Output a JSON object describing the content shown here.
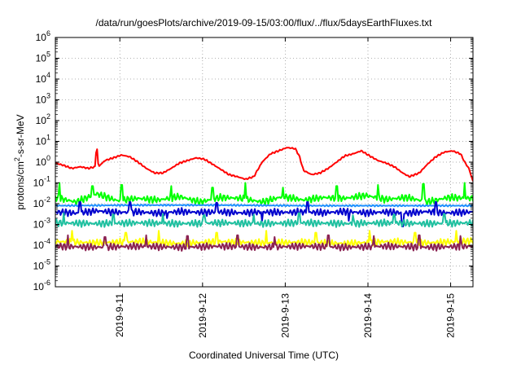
{
  "chart_data": {
    "type": "line",
    "title": "/data/run/goesPlots/archive/2019-09-15/03:00/flux/../flux/5daysEarthFluxes.txt",
    "xlabel": "Coordinated Universal Time (UTC)",
    "ylabel": {
      "prefix": "protons/cm",
      "sup": "2",
      "suffix": "-s-sr-MeV"
    },
    "y_scale": "log",
    "ylim": [
      1e-06,
      1000000.0
    ],
    "y_ticks": [
      {
        "base": "10",
        "exp": "-6",
        "value": 1e-06
      },
      {
        "base": "10",
        "exp": "-5",
        "value": 1e-05
      },
      {
        "base": "10",
        "exp": "-4",
        "value": 0.0001
      },
      {
        "base": "10",
        "exp": "-3",
        "value": 0.001
      },
      {
        "base": "10",
        "exp": "-2",
        "value": 0.01
      },
      {
        "base": "10",
        "exp": "-1",
        "value": 0.1
      },
      {
        "base": "10",
        "exp": "0",
        "value": 1
      },
      {
        "base": "10",
        "exp": "1",
        "value": 10
      },
      {
        "base": "10",
        "exp": "2",
        "value": 100
      },
      {
        "base": "10",
        "exp": "3",
        "value": 1000
      },
      {
        "base": "10",
        "exp": "4",
        "value": 10000
      },
      {
        "base": "10",
        "exp": "5",
        "value": 100000
      },
      {
        "base": "10",
        "exp": "6",
        "value": 1000000
      }
    ],
    "x_range_days": [
      0,
      5.05
    ],
    "x_ticks": [
      {
        "label": "2019-9-11",
        "day": 0.78
      },
      {
        "label": "2019-9-12",
        "day": 1.78
      },
      {
        "label": "2019-9-13",
        "day": 2.78
      },
      {
        "label": "2019-9-14",
        "day": 3.78
      },
      {
        "label": "2019-9-15",
        "day": 4.78
      }
    ],
    "grid": true,
    "series": [
      {
        "color": "#ff0000",
        "width": 2,
        "points": [
          [
            0,
            0.9
          ],
          [
            0.1,
            0.7
          ],
          [
            0.2,
            0.5
          ],
          [
            0.3,
            0.6
          ],
          [
            0.4,
            0.5
          ],
          [
            0.48,
            0.6
          ],
          [
            0.5,
            8
          ],
          [
            0.52,
            0.6
          ],
          [
            0.6,
            1.2
          ],
          [
            0.7,
            1.6
          ],
          [
            0.8,
            2.2
          ],
          [
            0.9,
            1.8
          ],
          [
            1.0,
            1.0
          ],
          [
            1.1,
            0.5
          ],
          [
            1.2,
            0.3
          ],
          [
            1.3,
            0.3
          ],
          [
            1.4,
            0.5
          ],
          [
            1.5,
            0.9
          ],
          [
            1.6,
            1.2
          ],
          [
            1.7,
            1.6
          ],
          [
            1.8,
            1.4
          ],
          [
            1.9,
            0.8
          ],
          [
            2.0,
            0.45
          ],
          [
            2.1,
            0.25
          ],
          [
            2.2,
            0.2
          ],
          [
            2.3,
            0.15
          ],
          [
            2.4,
            0.2
          ],
          [
            2.5,
            1.0
          ],
          [
            2.6,
            2.5
          ],
          [
            2.7,
            3.5
          ],
          [
            2.8,
            5.0
          ],
          [
            2.9,
            4.5
          ],
          [
            2.95,
            2.0
          ],
          [
            3.0,
            0.4
          ],
          [
            3.1,
            0.25
          ],
          [
            3.2,
            0.3
          ],
          [
            3.3,
            0.5
          ],
          [
            3.4,
            1.0
          ],
          [
            3.5,
            2.0
          ],
          [
            3.6,
            2.5
          ],
          [
            3.7,
            3.5
          ],
          [
            3.8,
            2.0
          ],
          [
            3.9,
            1.2
          ],
          [
            4.0,
            0.9
          ],
          [
            4.1,
            0.6
          ],
          [
            4.2,
            0.3
          ],
          [
            4.28,
            0.2
          ],
          [
            4.4,
            0.3
          ],
          [
            4.5,
            0.8
          ],
          [
            4.6,
            1.8
          ],
          [
            4.7,
            3.0
          ],
          [
            4.8,
            3.5
          ],
          [
            4.9,
            2.5
          ],
          [
            4.95,
            1.0
          ],
          [
            5.0,
            0.5
          ],
          [
            5.05,
            0.12
          ]
        ]
      },
      {
        "color": "#00ff00",
        "width": 2,
        "points": [
          [
            0,
            0.02
          ],
          [
            0.25,
            0.012
          ],
          [
            0.5,
            0.03
          ],
          [
            0.75,
            0.014
          ],
          [
            1.0,
            0.018
          ],
          [
            1.25,
            0.015
          ],
          [
            1.5,
            0.022
          ],
          [
            1.75,
            0.012
          ],
          [
            2.0,
            0.02
          ],
          [
            2.25,
            0.018
          ],
          [
            2.5,
            0.012
          ],
          [
            2.75,
            0.022
          ],
          [
            3.0,
            0.015
          ],
          [
            3.25,
            0.02
          ],
          [
            3.5,
            0.018
          ],
          [
            3.75,
            0.025
          ],
          [
            4.0,
            0.016
          ],
          [
            4.25,
            0.02
          ],
          [
            4.5,
            0.012
          ],
          [
            4.75,
            0.02
          ],
          [
            5.05,
            0.018
          ]
        ],
        "spikes": [
          [
            0.05,
            0.1
          ],
          [
            0.45,
            0.07
          ],
          [
            0.8,
            0.08
          ],
          [
            1.4,
            0.07
          ],
          [
            1.9,
            0.06
          ],
          [
            2.3,
            0.1
          ],
          [
            2.75,
            0.06
          ],
          [
            3.4,
            0.07
          ],
          [
            3.9,
            0.08
          ],
          [
            4.45,
            0.09
          ],
          [
            4.95,
            0.1
          ]
        ]
      },
      {
        "color": "#1e90ff",
        "width": 2,
        "points": [
          [
            0,
            0.008
          ],
          [
            1.0,
            0.0085
          ],
          [
            2.0,
            0.0085
          ],
          [
            3.0,
            0.008
          ],
          [
            4.0,
            0.008
          ],
          [
            5.05,
            0.008
          ]
        ]
      },
      {
        "color": "#0000cd",
        "width": 2,
        "points": [
          [
            0,
            0.004
          ],
          [
            0.25,
            0.0035
          ],
          [
            0.5,
            0.0045
          ],
          [
            0.75,
            0.0038
          ],
          [
            1.0,
            0.004
          ],
          [
            1.25,
            0.0035
          ],
          [
            1.5,
            0.0042
          ],
          [
            1.75,
            0.0038
          ],
          [
            2.0,
            0.004
          ],
          [
            2.25,
            0.0036
          ],
          [
            2.5,
            0.004
          ],
          [
            2.75,
            0.0038
          ],
          [
            3.0,
            0.004
          ],
          [
            3.25,
            0.0037
          ],
          [
            3.5,
            0.0042
          ],
          [
            3.75,
            0.0036
          ],
          [
            4.0,
            0.004
          ],
          [
            4.25,
            0.0035
          ],
          [
            4.5,
            0.0042
          ],
          [
            4.75,
            0.0036
          ],
          [
            5.05,
            0.004
          ]
        ],
        "spikes": [
          [
            0.3,
            0.012
          ],
          [
            0.9,
            0.012
          ],
          [
            1.35,
            0.002
          ],
          [
            1.95,
            0.011
          ],
          [
            2.5,
            0.0015
          ],
          [
            3.05,
            0.012
          ],
          [
            3.55,
            0.0015
          ],
          [
            4.2,
            0.0008
          ],
          [
            4.6,
            0.012
          ]
        ]
      },
      {
        "color": "#20c0a0",
        "width": 2,
        "points": [
          [
            0,
            0.0012
          ],
          [
            0.5,
            0.0011
          ],
          [
            1.0,
            0.0012
          ],
          [
            1.5,
            0.0011
          ],
          [
            2.0,
            0.0012
          ],
          [
            2.5,
            0.0011
          ],
          [
            3.0,
            0.0012
          ],
          [
            3.5,
            0.0011
          ],
          [
            4.0,
            0.0012
          ],
          [
            4.5,
            0.0011
          ],
          [
            5.05,
            0.0012
          ]
        ],
        "spikes": [
          [
            0.1,
            0.0035
          ],
          [
            0.7,
            0.003
          ],
          [
            1.3,
            0.0032
          ],
          [
            1.8,
            0.0028
          ],
          [
            2.4,
            0.003
          ],
          [
            2.95,
            0.0035
          ],
          [
            3.6,
            0.0028
          ],
          [
            4.1,
            0.003
          ],
          [
            4.7,
            0.0032
          ]
        ]
      },
      {
        "color": "#ffff00",
        "width": 2,
        "points": [
          [
            0,
            0.00015
          ],
          [
            0.5,
            0.00013
          ],
          [
            1.0,
            0.00015
          ],
          [
            1.5,
            0.00012
          ],
          [
            2.0,
            0.00015
          ],
          [
            2.5,
            0.00013
          ],
          [
            3.0,
            0.00014
          ],
          [
            3.5,
            0.00012
          ],
          [
            4.0,
            0.00015
          ],
          [
            4.5,
            0.00013
          ],
          [
            5.05,
            0.00016
          ]
        ],
        "spikes": [
          [
            0.2,
            0.0005
          ],
          [
            0.85,
            0.0004
          ],
          [
            1.25,
            0.0005
          ],
          [
            1.95,
            0.0004
          ],
          [
            2.55,
            0.0005
          ],
          [
            3.15,
            0.0004
          ],
          [
            3.8,
            0.0005
          ],
          [
            4.35,
            0.0004
          ],
          [
            4.85,
            0.0005
          ]
        ]
      },
      {
        "color": "#8b2252",
        "width": 2,
        "points": [
          [
            0,
            9e-05
          ],
          [
            0.5,
            8e-05
          ],
          [
            1.0,
            9e-05
          ],
          [
            1.5,
            8e-05
          ],
          [
            2.0,
            9e-05
          ],
          [
            2.5,
            8e-05
          ],
          [
            3.0,
            9e-05
          ],
          [
            3.5,
            8e-05
          ],
          [
            4.0,
            9e-05
          ],
          [
            4.5,
            8e-05
          ],
          [
            5.05,
            9e-05
          ]
        ],
        "spikes": [
          [
            0.15,
            0.0003
          ],
          [
            0.6,
            0.00025
          ],
          [
            1.1,
            0.0003
          ],
          [
            1.6,
            0.00028
          ],
          [
            2.2,
            0.0003
          ],
          [
            2.65,
            0.00025
          ],
          [
            3.3,
            0.0003
          ],
          [
            3.85,
            0.00028
          ],
          [
            4.4,
            0.0003
          ],
          [
            4.9,
            0.00028
          ]
        ]
      }
    ]
  }
}
